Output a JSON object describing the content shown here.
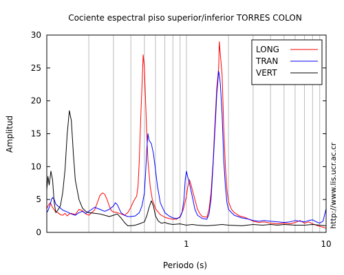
{
  "chart_data": {
    "type": "line",
    "title": "Cociente espectral piso superior/inferior  TORRES COLON",
    "xlabel": "Periodo (s)",
    "ylabel": "Amplitud",
    "xscale": "log",
    "xlim": [
      0.1,
      10
    ],
    "ylim": [
      0,
      30
    ],
    "grid": "vertical",
    "legend_position": "top-right",
    "y_ticks": [
      0,
      5,
      10,
      15,
      20,
      25,
      30
    ],
    "x_tick_labels": [
      {
        "value": 1,
        "label": "1"
      },
      {
        "value": 10,
        "label": "10"
      }
    ],
    "watermark": "http://www.lis.ucr.ac.cr",
    "series": [
      {
        "name": "LONG",
        "color": "#ff0000",
        "points": [
          [
            0.1,
            3.6
          ],
          [
            0.103,
            4.2
          ],
          [
            0.106,
            4.5
          ],
          [
            0.11,
            3.8
          ],
          [
            0.115,
            3.2
          ],
          [
            0.12,
            3.0
          ],
          [
            0.125,
            2.7
          ],
          [
            0.13,
            2.6
          ],
          [
            0.135,
            2.9
          ],
          [
            0.14,
            2.5
          ],
          [
            0.145,
            2.8
          ],
          [
            0.15,
            2.9
          ],
          [
            0.16,
            2.7
          ],
          [
            0.17,
            3.5
          ],
          [
            0.18,
            3.3
          ],
          [
            0.19,
            2.8
          ],
          [
            0.2,
            2.6
          ],
          [
            0.21,
            3.0
          ],
          [
            0.22,
            3.4
          ],
          [
            0.23,
            4.5
          ],
          [
            0.24,
            5.6
          ],
          [
            0.25,
            6.0
          ],
          [
            0.26,
            5.8
          ],
          [
            0.27,
            5.0
          ],
          [
            0.28,
            4.0
          ],
          [
            0.29,
            3.3
          ],
          [
            0.3,
            3.1
          ],
          [
            0.32,
            3.0
          ],
          [
            0.34,
            2.8
          ],
          [
            0.36,
            2.6
          ],
          [
            0.38,
            3.0
          ],
          [
            0.4,
            3.8
          ],
          [
            0.42,
            4.8
          ],
          [
            0.44,
            5.5
          ],
          [
            0.45,
            7.0
          ],
          [
            0.46,
            11.0
          ],
          [
            0.47,
            17.0
          ],
          [
            0.48,
            22.0
          ],
          [
            0.49,
            27.0
          ],
          [
            0.5,
            25.0
          ],
          [
            0.51,
            20.0
          ],
          [
            0.52,
            15.0
          ],
          [
            0.53,
            11.0
          ],
          [
            0.55,
            7.0
          ],
          [
            0.57,
            5.0
          ],
          [
            0.6,
            3.6
          ],
          [
            0.65,
            2.7
          ],
          [
            0.7,
            2.3
          ],
          [
            0.75,
            2.1
          ],
          [
            0.8,
            2.0
          ],
          [
            0.85,
            2.0
          ],
          [
            0.9,
            2.4
          ],
          [
            0.95,
            3.5
          ],
          [
            1.0,
            5.5
          ],
          [
            1.02,
            6.8
          ],
          [
            1.05,
            8.0
          ],
          [
            1.08,
            7.2
          ],
          [
            1.1,
            6.5
          ],
          [
            1.15,
            5.0
          ],
          [
            1.2,
            3.5
          ],
          [
            1.25,
            2.8
          ],
          [
            1.3,
            2.4
          ],
          [
            1.4,
            2.3
          ],
          [
            1.45,
            3.5
          ],
          [
            1.5,
            6.0
          ],
          [
            1.55,
            10.5
          ],
          [
            1.6,
            16.5
          ],
          [
            1.65,
            22.0
          ],
          [
            1.7,
            25.0
          ],
          [
            1.72,
            29.0
          ],
          [
            1.75,
            27.0
          ],
          [
            1.8,
            24.0
          ],
          [
            1.85,
            16.0
          ],
          [
            1.9,
            10.0
          ],
          [
            1.95,
            6.5
          ],
          [
            2.0,
            4.7
          ],
          [
            2.1,
            3.5
          ],
          [
            2.2,
            3.0
          ],
          [
            2.4,
            2.5
          ],
          [
            2.6,
            2.3
          ],
          [
            2.8,
            2.0
          ],
          [
            3.0,
            1.7
          ],
          [
            3.3,
            1.5
          ],
          [
            3.6,
            1.6
          ],
          [
            4.0,
            1.4
          ],
          [
            4.5,
            1.3
          ],
          [
            5.0,
            1.4
          ],
          [
            5.5,
            1.3
          ],
          [
            6.0,
            1.5
          ],
          [
            6.5,
            1.8
          ],
          [
            7.0,
            1.4
          ],
          [
            7.5,
            1.6
          ],
          [
            8.0,
            1.3
          ],
          [
            8.5,
            1.1
          ],
          [
            9.0,
            0.9
          ],
          [
            9.5,
            0.8
          ],
          [
            10,
            0.6
          ]
        ]
      },
      {
        "name": "TRAN",
        "color": "#0000ff",
        "points": [
          [
            0.1,
            3.0
          ],
          [
            0.102,
            3.3
          ],
          [
            0.105,
            4.0
          ],
          [
            0.108,
            5.0
          ],
          [
            0.11,
            5.3
          ],
          [
            0.113,
            5.0
          ],
          [
            0.116,
            4.3
          ],
          [
            0.12,
            4.0
          ],
          [
            0.125,
            3.7
          ],
          [
            0.13,
            3.4
          ],
          [
            0.14,
            3.1
          ],
          [
            0.15,
            2.8
          ],
          [
            0.16,
            2.6
          ],
          [
            0.17,
            3.0
          ],
          [
            0.18,
            3.2
          ],
          [
            0.19,
            2.9
          ],
          [
            0.2,
            3.2
          ],
          [
            0.22,
            3.8
          ],
          [
            0.24,
            3.5
          ],
          [
            0.26,
            3.2
          ],
          [
            0.28,
            3.5
          ],
          [
            0.3,
            4.0
          ],
          [
            0.31,
            4.5
          ],
          [
            0.32,
            4.2
          ],
          [
            0.34,
            3.0
          ],
          [
            0.36,
            2.6
          ],
          [
            0.38,
            2.4
          ],
          [
            0.4,
            2.4
          ],
          [
            0.43,
            2.5
          ],
          [
            0.46,
            3.0
          ],
          [
            0.48,
            4.0
          ],
          [
            0.5,
            6.0
          ],
          [
            0.51,
            9.0
          ],
          [
            0.52,
            12.5
          ],
          [
            0.53,
            15.0
          ],
          [
            0.54,
            14.0
          ],
          [
            0.56,
            13.5
          ],
          [
            0.58,
            12.0
          ],
          [
            0.6,
            9.5
          ],
          [
            0.62,
            7.0
          ],
          [
            0.65,
            4.5
          ],
          [
            0.7,
            3.0
          ],
          [
            0.75,
            2.5
          ],
          [
            0.8,
            2.2
          ],
          [
            0.85,
            2.1
          ],
          [
            0.9,
            2.3
          ],
          [
            0.93,
            3.0
          ],
          [
            0.96,
            5.0
          ],
          [
            0.98,
            8.0
          ],
          [
            1.0,
            9.3
          ],
          [
            1.02,
            8.5
          ],
          [
            1.05,
            7.5
          ],
          [
            1.1,
            5.5
          ],
          [
            1.15,
            3.5
          ],
          [
            1.2,
            2.6
          ],
          [
            1.3,
            2.1
          ],
          [
            1.4,
            2.0
          ],
          [
            1.45,
            2.8
          ],
          [
            1.5,
            5.0
          ],
          [
            1.55,
            10.0
          ],
          [
            1.6,
            15.5
          ],
          [
            1.65,
            21.0
          ],
          [
            1.7,
            24.5
          ],
          [
            1.72,
            24.0
          ],
          [
            1.75,
            22.5
          ],
          [
            1.8,
            18.0
          ],
          [
            1.85,
            11.0
          ],
          [
            1.9,
            7.0
          ],
          [
            1.95,
            4.5
          ],
          [
            2.0,
            3.5
          ],
          [
            2.1,
            3.0
          ],
          [
            2.2,
            2.6
          ],
          [
            2.5,
            2.2
          ],
          [
            2.8,
            2.0
          ],
          [
            3.0,
            1.8
          ],
          [
            3.3,
            1.7
          ],
          [
            3.6,
            1.8
          ],
          [
            4.0,
            1.7
          ],
          [
            4.5,
            1.6
          ],
          [
            5.0,
            1.5
          ],
          [
            5.5,
            1.6
          ],
          [
            6.0,
            1.8
          ],
          [
            6.5,
            1.7
          ],
          [
            7.0,
            1.6
          ],
          [
            7.5,
            1.8
          ],
          [
            8.0,
            1.9
          ],
          [
            8.5,
            1.6
          ],
          [
            9.0,
            1.4
          ],
          [
            9.5,
            1.7
          ],
          [
            10,
            3.6
          ]
        ]
      },
      {
        "name": "VERT",
        "color": "#000000",
        "points": [
          [
            0.1,
            6.5
          ],
          [
            0.102,
            8.5
          ],
          [
            0.104,
            7.2
          ],
          [
            0.107,
            9.3
          ],
          [
            0.11,
            8.0
          ],
          [
            0.113,
            4.5
          ],
          [
            0.116,
            3.0
          ],
          [
            0.12,
            3.4
          ],
          [
            0.125,
            4.0
          ],
          [
            0.13,
            6.0
          ],
          [
            0.135,
            9.5
          ],
          [
            0.14,
            15.0
          ],
          [
            0.145,
            18.5
          ],
          [
            0.15,
            17.0
          ],
          [
            0.155,
            12.0
          ],
          [
            0.16,
            8.0
          ],
          [
            0.17,
            5.0
          ],
          [
            0.18,
            3.7
          ],
          [
            0.19,
            3.2
          ],
          [
            0.2,
            3.0
          ],
          [
            0.22,
            2.9
          ],
          [
            0.24,
            2.8
          ],
          [
            0.26,
            2.6
          ],
          [
            0.28,
            2.4
          ],
          [
            0.3,
            2.6
          ],
          [
            0.32,
            2.8
          ],
          [
            0.34,
            2.2
          ],
          [
            0.36,
            1.5
          ],
          [
            0.38,
            1.0
          ],
          [
            0.4,
            1.0
          ],
          [
            0.43,
            1.1
          ],
          [
            0.46,
            1.3
          ],
          [
            0.5,
            1.6
          ],
          [
            0.52,
            2.5
          ],
          [
            0.54,
            3.8
          ],
          [
            0.56,
            4.8
          ],
          [
            0.58,
            4.0
          ],
          [
            0.6,
            2.5
          ],
          [
            0.63,
            1.7
          ],
          [
            0.66,
            1.4
          ],
          [
            0.7,
            1.5
          ],
          [
            0.75,
            1.3
          ],
          [
            0.8,
            1.2
          ],
          [
            0.9,
            1.3
          ],
          [
            1.0,
            1.1
          ],
          [
            1.1,
            1.2
          ],
          [
            1.2,
            1.1
          ],
          [
            1.4,
            1.0
          ],
          [
            1.6,
            1.1
          ],
          [
            1.8,
            1.2
          ],
          [
            2.0,
            1.1
          ],
          [
            2.5,
            1.0
          ],
          [
            3.0,
            1.2
          ],
          [
            3.5,
            1.1
          ],
          [
            4.0,
            1.2
          ],
          [
            4.5,
            1.1
          ],
          [
            5.0,
            1.2
          ],
          [
            6.0,
            1.1
          ],
          [
            7.0,
            1.1
          ],
          [
            8.0,
            1.2
          ],
          [
            9.0,
            1.1
          ],
          [
            10,
            1.0
          ]
        ]
      }
    ]
  }
}
